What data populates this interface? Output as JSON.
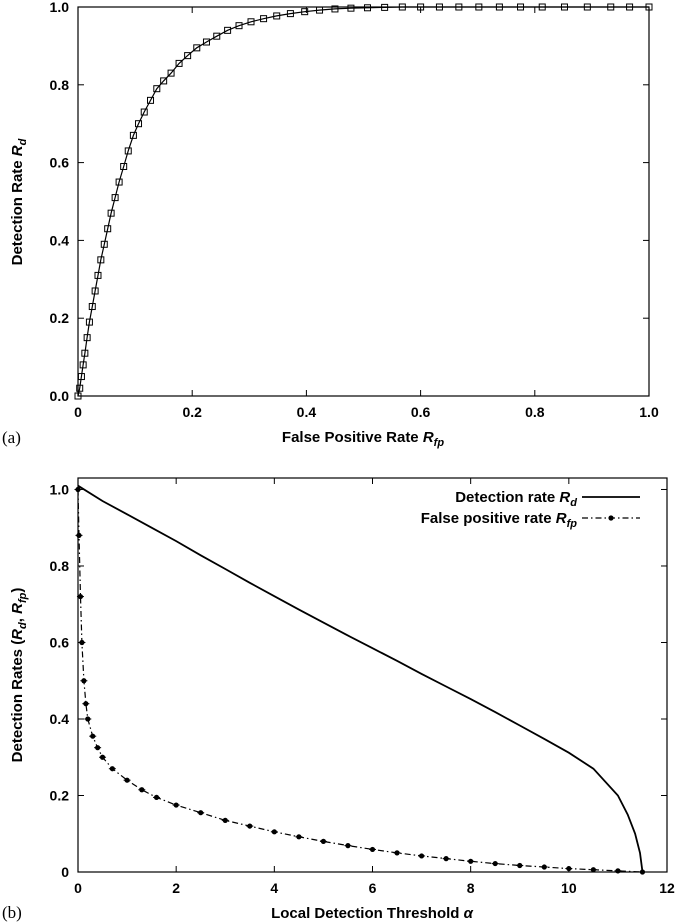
{
  "chart_data": [
    {
      "type": "scatter",
      "panel_label": "(a)",
      "xlabel": "False Positive Rate",
      "xlabel_sub": "fp",
      "ylabel": "Detection Rate",
      "ylabel_sub": "d",
      "xlim": [
        0,
        1
      ],
      "ylim": [
        0,
        1
      ],
      "xticks": [
        "0",
        "0.2",
        "0.4",
        "0.6",
        "0.8",
        "1.0"
      ],
      "yticks": [
        "0.0",
        "0.2",
        "0.4",
        "0.6",
        "0.8",
        "1.0"
      ],
      "grid": false,
      "series": [
        {
          "marker": "square-open",
          "x": [
            0.0,
            0.003,
            0.006,
            0.009,
            0.012,
            0.016,
            0.02,
            0.025,
            0.03,
            0.035,
            0.04,
            0.046,
            0.052,
            0.058,
            0.065,
            0.072,
            0.08,
            0.088,
            0.097,
            0.106,
            0.116,
            0.127,
            0.138,
            0.15,
            0.163,
            0.177,
            0.192,
            0.208,
            0.225,
            0.243,
            0.262,
            0.282,
            0.303,
            0.325,
            0.348,
            0.372,
            0.397,
            0.423,
            0.45,
            0.478,
            0.507,
            0.537,
            0.568,
            0.6,
            0.633,
            0.667,
            0.702,
            0.738,
            0.775,
            0.813,
            0.852,
            0.892,
            0.933,
            0.966,
            1.0
          ],
          "y": [
            0.0,
            0.02,
            0.05,
            0.08,
            0.11,
            0.15,
            0.19,
            0.23,
            0.27,
            0.31,
            0.35,
            0.39,
            0.43,
            0.47,
            0.51,
            0.55,
            0.59,
            0.63,
            0.67,
            0.7,
            0.73,
            0.76,
            0.79,
            0.81,
            0.83,
            0.855,
            0.875,
            0.895,
            0.91,
            0.925,
            0.94,
            0.952,
            0.962,
            0.97,
            0.977,
            0.983,
            0.988,
            0.992,
            0.995,
            0.997,
            0.998,
            0.999,
            1.0,
            1.0,
            1.0,
            1.0,
            1.0,
            1.0,
            1.0,
            1.0,
            1.0,
            1.0,
            1.0,
            1.0,
            1.0
          ]
        }
      ]
    },
    {
      "type": "line",
      "panel_label": "(b)",
      "xlabel": "Local Detection Threshold",
      "xlabel_symbol": "α",
      "ylabel": "Detection Rates (",
      "ylabel_r1": "R",
      "ylabel_sub1": "d",
      "ylabel_sep": ", ",
      "ylabel_r2": "R",
      "ylabel_sub2": "fp",
      "ylabel_close": ")",
      "xlim": [
        0,
        12
      ],
      "ylim": [
        0,
        1.03
      ],
      "xticks": [
        "0",
        "2",
        "4",
        "6",
        "8",
        "10",
        "12"
      ],
      "yticks": [
        "0",
        "0.2",
        "0.4",
        "0.6",
        "0.8",
        "1.0"
      ],
      "grid": false,
      "legend": "top-right",
      "series": [
        {
          "name": "Detection rate",
          "name_symbol": "R",
          "name_sub": "d",
          "style": "solid",
          "x": [
            0,
            0.5,
            1,
            1.5,
            2,
            2.5,
            3,
            3.5,
            4,
            4.5,
            5,
            5.5,
            6,
            6.5,
            7,
            7.5,
            8,
            8.5,
            9,
            9.5,
            10,
            10.5,
            11,
            11.2,
            11.35,
            11.45,
            11.5
          ],
          "y": [
            1.01,
            0.97,
            0.935,
            0.9,
            0.865,
            0.828,
            0.792,
            0.756,
            0.721,
            0.686,
            0.652,
            0.618,
            0.585,
            0.552,
            0.518,
            0.485,
            0.452,
            0.418,
            0.383,
            0.348,
            0.312,
            0.27,
            0.2,
            0.15,
            0.1,
            0.05,
            0.0
          ]
        },
        {
          "name": "False positive rate",
          "name_symbol": "R",
          "name_sub": "fp",
          "style": "dash-dot-marker",
          "x": [
            0,
            0.02,
            0.05,
            0.08,
            0.12,
            0.16,
            0.2,
            0.3,
            0.4,
            0.5,
            0.7,
            1,
            1.3,
            1.6,
            2,
            2.5,
            3,
            3.5,
            4,
            4.5,
            5,
            5.5,
            6,
            6.5,
            7,
            7.5,
            8,
            8.5,
            9,
            9.5,
            10,
            10.5,
            11,
            11.5
          ],
          "y": [
            1.0,
            0.88,
            0.72,
            0.6,
            0.5,
            0.44,
            0.4,
            0.355,
            0.325,
            0.3,
            0.27,
            0.24,
            0.215,
            0.195,
            0.175,
            0.155,
            0.135,
            0.12,
            0.105,
            0.092,
            0.08,
            0.069,
            0.059,
            0.05,
            0.042,
            0.035,
            0.028,
            0.022,
            0.017,
            0.013,
            0.009,
            0.006,
            0.003,
            0.0
          ]
        }
      ]
    }
  ]
}
